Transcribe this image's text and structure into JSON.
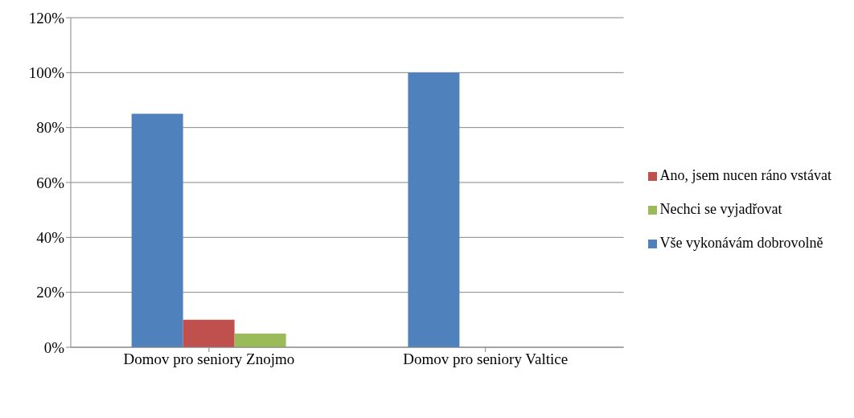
{
  "chart_data": {
    "type": "bar",
    "categories": [
      "Domov pro seniory Znojmo",
      "Domov pro seniory Valtice"
    ],
    "series": [
      {
        "name": "Vše vykonávám dobrovolně",
        "color": "#4f81bd",
        "values": [
          85,
          100
        ]
      },
      {
        "name": "Ano, jsem nucen ráno vstávat",
        "color": "#c0504d",
        "values": [
          10,
          0
        ]
      },
      {
        "name": "Nechci se vyjadřovat",
        "color": "#9bbb59",
        "values": [
          5,
          0
        ]
      }
    ],
    "ylim": [
      0,
      120
    ],
    "yticks": [
      {
        "value": 0,
        "label": "0%"
      },
      {
        "value": 20,
        "label": "20%"
      },
      {
        "value": 40,
        "label": "40%"
      },
      {
        "value": 60,
        "label": "60%"
      },
      {
        "value": 80,
        "label": "80%"
      },
      {
        "value": 100,
        "label": "100%"
      },
      {
        "value": 120,
        "label": "120%"
      }
    ],
    "grid": "y",
    "legend": "right"
  }
}
